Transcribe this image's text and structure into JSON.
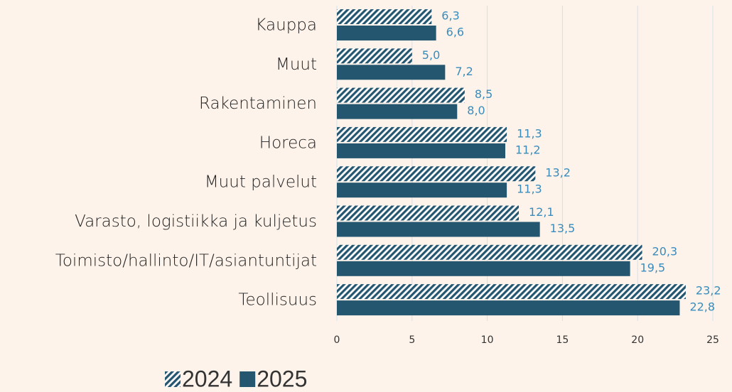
{
  "chart_data": {
    "type": "bar",
    "orientation": "horizontal",
    "categories": [
      "Kauppa",
      "Muut",
      "Rakentaminen",
      "Horeca",
      "Muut palvelut",
      "Varasto, logistiikka ja kuljetus",
      "Toimisto/hallinto/IT/asiantuntijat",
      "Teollisuus"
    ],
    "series": [
      {
        "name": "2024",
        "color": "#245670",
        "pattern": "hatch",
        "values": [
          6.3,
          5.0,
          8.5,
          11.3,
          13.2,
          12.1,
          20.3,
          23.2
        ],
        "value_labels": [
          "6,3",
          "5,0",
          "8,5",
          "11,3",
          "13,2",
          "12,1",
          "20,3",
          "23,2"
        ]
      },
      {
        "name": "2025",
        "color": "#245670",
        "values": [
          6.6,
          7.2,
          8.0,
          11.2,
          11.3,
          13.5,
          19.5,
          22.8
        ],
        "value_labels": [
          "6,6",
          "7,2",
          "8,0",
          "11,2",
          "11,3",
          "13,5",
          "19,5",
          "22,8"
        ]
      }
    ],
    "xlim": [
      0,
      25
    ],
    "xticks": [
      0,
      5,
      10,
      15,
      20,
      25
    ],
    "grid": true,
    "legend": "bottom"
  }
}
